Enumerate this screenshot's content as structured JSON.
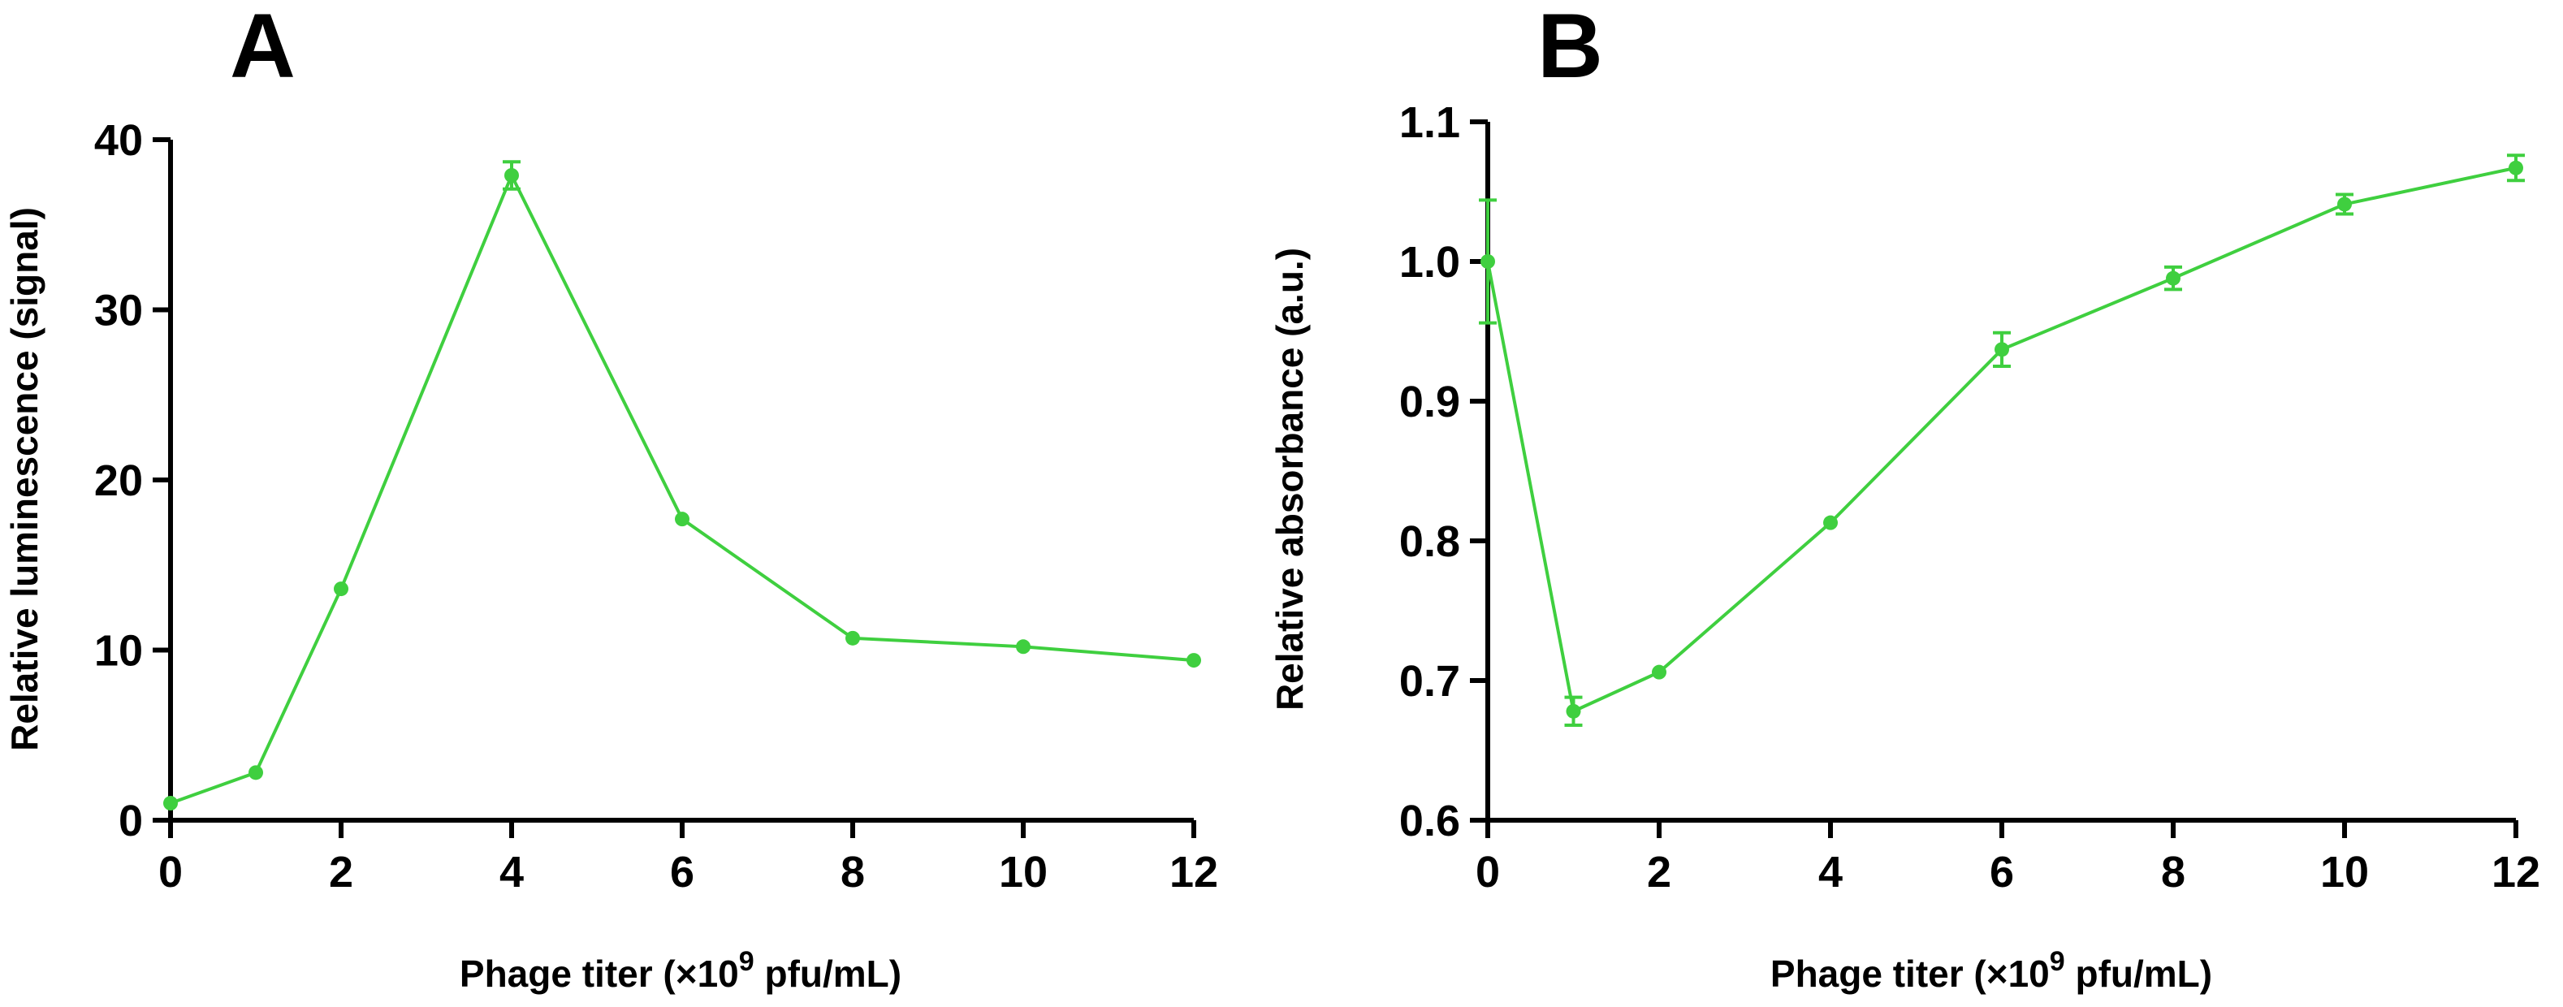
{
  "chart_data": [
    {
      "panel": "A",
      "type": "line",
      "xlabel": "Phage titer (×10",
      "xlabel_sup": "9",
      "xlabel_end": " pfu/mL)",
      "ylabel": "Relative luminescence (signal)",
      "xlim": [
        0,
        12
      ],
      "ylim": [
        0,
        40
      ],
      "xticks": [
        0,
        2,
        4,
        6,
        8,
        10,
        12
      ],
      "yticks": [
        0,
        10,
        20,
        30,
        40
      ],
      "yticks_labels": [
        "0",
        "10",
        "20",
        "30",
        "40"
      ],
      "series": [
        {
          "name": "signal",
          "color": "#3fcf3f",
          "x": [
            0,
            1,
            2,
            4,
            6,
            8,
            10,
            12
          ],
          "y": [
            1.0,
            2.8,
            13.6,
            37.9,
            17.7,
            10.7,
            10.2,
            9.4
          ],
          "err": [
            0,
            0,
            0,
            0.8,
            0,
            0,
            0,
            0
          ]
        }
      ]
    },
    {
      "panel": "B",
      "type": "line",
      "xlabel": "Phage titer (×10",
      "xlabel_sup": "9",
      "xlabel_end": " pfu/mL)",
      "ylabel": "Relative absorbance (a.u.)",
      "xlim": [
        0,
        12
      ],
      "ylim": [
        0.6,
        1.1
      ],
      "xticks": [
        0,
        2,
        4,
        6,
        8,
        10,
        12
      ],
      "yticks": [
        0.6,
        0.7,
        0.8,
        0.9,
        1.0,
        1.1
      ],
      "yticks_labels": [
        "0.6",
        "0.7",
        "0.8",
        "0.9",
        "1.0",
        "1.1"
      ],
      "series": [
        {
          "name": "absorbance",
          "color": "#3fcf3f",
          "x": [
            0,
            1,
            2,
            4,
            6,
            8,
            10,
            12
          ],
          "y": [
            1.0,
            0.678,
            0.706,
            0.813,
            0.937,
            0.988,
            1.041,
            1.067
          ],
          "err": [
            0.044,
            0.01,
            0,
            0,
            0.012,
            0.008,
            0.007,
            0.009
          ]
        }
      ]
    }
  ]
}
